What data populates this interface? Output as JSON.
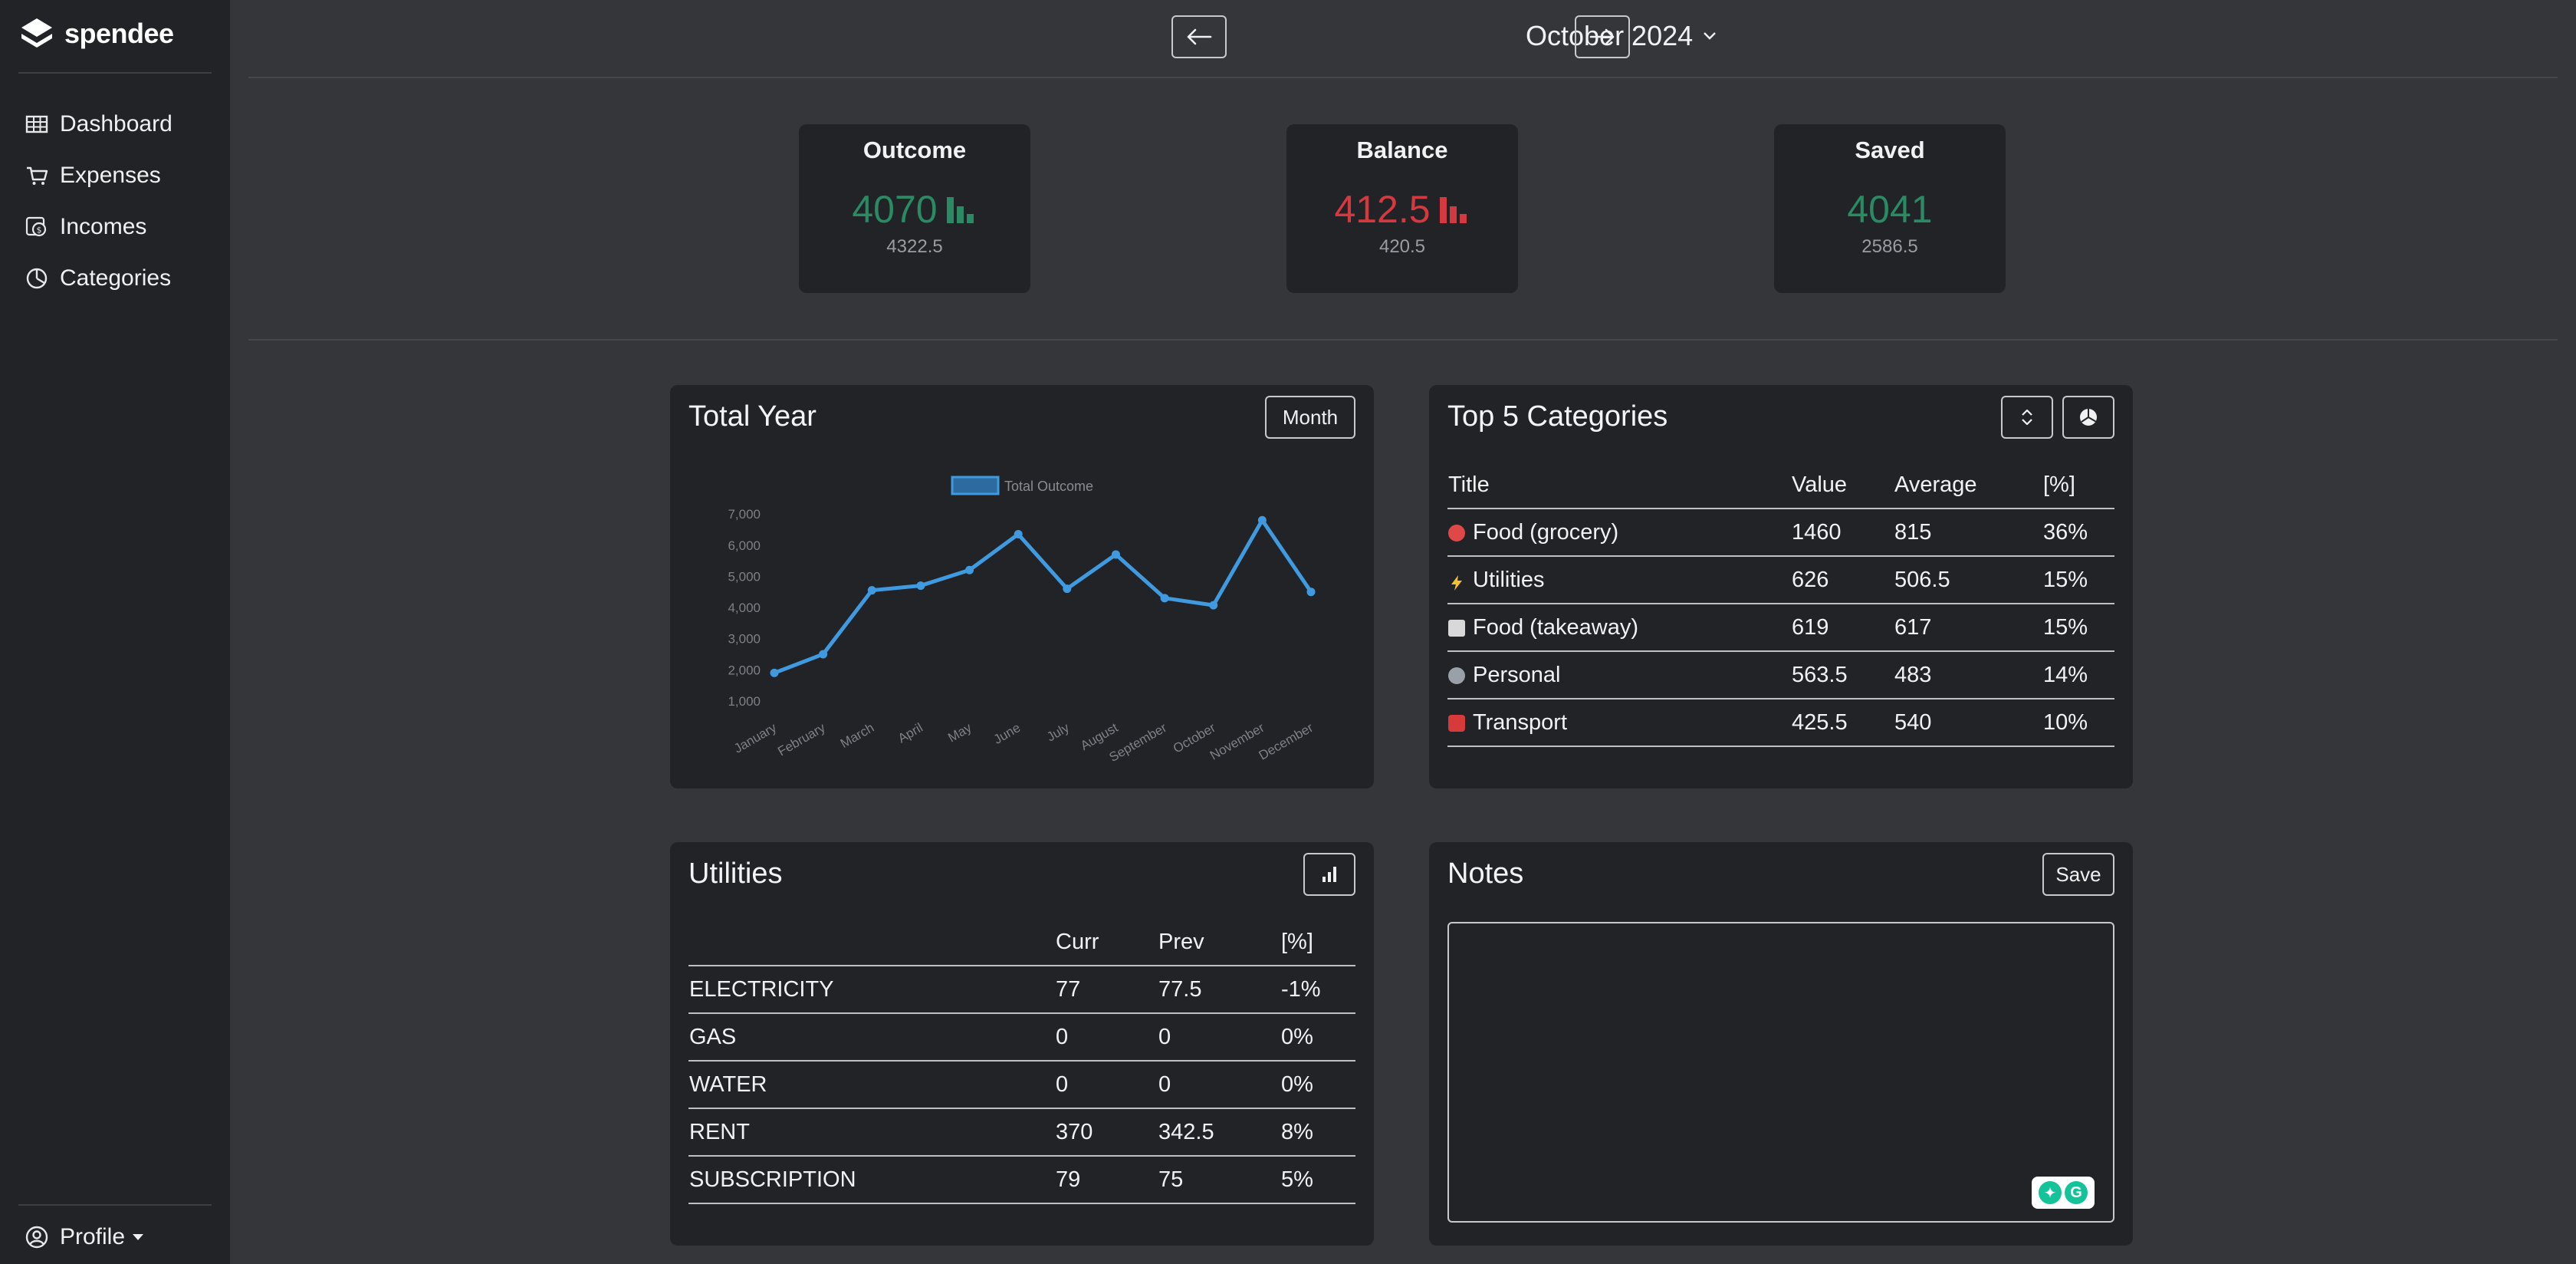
{
  "app": {
    "brand": "spendee"
  },
  "sidebar": {
    "items": [
      {
        "label": "Dashboard",
        "icon": "table-icon"
      },
      {
        "label": "Expenses",
        "icon": "cart-icon"
      },
      {
        "label": "Incomes",
        "icon": "coins-icon"
      },
      {
        "label": "Categories",
        "icon": "pie-icon"
      }
    ],
    "profile": "Profile"
  },
  "header": {
    "period": "October 2024"
  },
  "stats": {
    "outcome": {
      "title": "Outcome",
      "value": "4070",
      "avg": "4322.5",
      "color": "#2a8a63"
    },
    "balance": {
      "title": "Balance",
      "value": "412.5",
      "avg": "420.5",
      "color": "#d4393f"
    },
    "saved": {
      "title": "Saved",
      "value": "4041",
      "avg": "2586.5",
      "color": "#2a8a63"
    }
  },
  "total_year": {
    "title": "Total Year",
    "button": "Month"
  },
  "chart_data": {
    "type": "line",
    "categories": [
      "January",
      "February",
      "March",
      "April",
      "May",
      "June",
      "July",
      "August",
      "September",
      "October",
      "November",
      "December"
    ],
    "series": [
      {
        "name": "Total Outcome",
        "values": [
          1900,
          2500,
          4550,
          4700,
          5200,
          6350,
          4600,
          5700,
          4300,
          4070,
          6800,
          4500
        ],
        "color": "#3f9ae0"
      }
    ],
    "yticks": [
      "1,000",
      "2,000",
      "3,000",
      "4,000",
      "5,000",
      "6,000",
      "7,000"
    ],
    "ylim": [
      800,
      7200
    ],
    "title": "",
    "legend": "top-center"
  },
  "top5": {
    "title": "Top 5 Categories",
    "columns": [
      "Title",
      "Value",
      "Average",
      "[%]"
    ],
    "rows": [
      {
        "title": "Food (grocery)",
        "value": "1460",
        "avg": "815",
        "pct": "36%",
        "color": "#e04848"
      },
      {
        "title": "Utilities",
        "value": "626",
        "avg": "506.5",
        "pct": "15%",
        "color": "#f2c230"
      },
      {
        "title": "Food (takeaway)",
        "value": "619",
        "avg": "617",
        "pct": "15%",
        "color": "#d8d8d8"
      },
      {
        "title": "Personal",
        "value": "563.5",
        "avg": "483",
        "pct": "14%",
        "color": "#9aa0a8"
      },
      {
        "title": "Transport",
        "value": "425.5",
        "avg": "540",
        "pct": "10%",
        "color": "#d63a3a"
      }
    ]
  },
  "utilities": {
    "title": "Utilities",
    "columns": [
      "",
      "Curr",
      "Prev",
      "[%]"
    ],
    "rows": [
      {
        "name": "ELECTRICITY",
        "curr": "77",
        "prev": "77.5",
        "pct": "-1%"
      },
      {
        "name": "GAS",
        "curr": "0",
        "prev": "0",
        "pct": "0%"
      },
      {
        "name": "WATER",
        "curr": "0",
        "prev": "0",
        "pct": "0%"
      },
      {
        "name": "RENT",
        "curr": "370",
        "prev": "342.5",
        "pct": "8%"
      },
      {
        "name": "SUBSCRIPTION",
        "curr": "79",
        "prev": "75",
        "pct": "5%"
      }
    ]
  },
  "notes": {
    "title": "Notes",
    "button": "Save",
    "value": ""
  }
}
